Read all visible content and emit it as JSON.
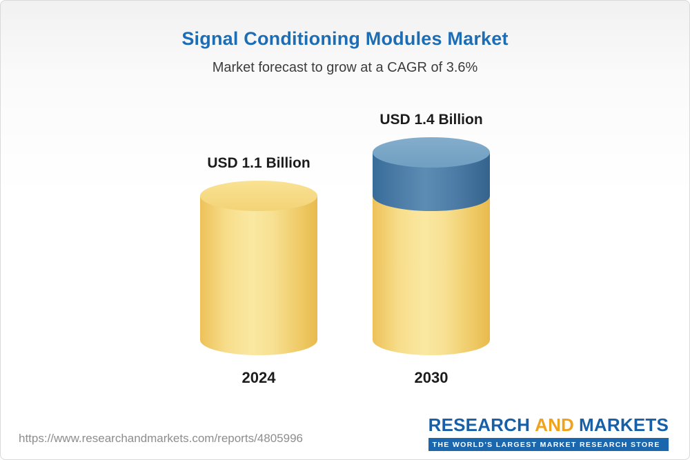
{
  "chart_data": {
    "type": "bar",
    "bar_style": "3d-cylinder",
    "title": "Signal Conditioning Modules Market",
    "subtitle": "Market forecast to grow at a CAGR of 3.6%",
    "cagr_percent": 3.6,
    "unit": "USD Billion",
    "categories": [
      "2024",
      "2030"
    ],
    "values": [
      1.1,
      1.4
    ],
    "value_labels": [
      "USD 1.1 Billion",
      "USD 1.4 Billion"
    ],
    "ylim": [
      0,
      1.6
    ],
    "grid": false,
    "legend": "none",
    "colors": {
      "base_segment": "#F6D77B",
      "growth_segment": "#4779A5",
      "title": "#1D6DB4"
    },
    "notes": "2030 cylinder shows growth above the 2024 baseline as a blue top segment"
  },
  "footer": {
    "source_url": "https://www.researchandmarkets.com/reports/4805996",
    "logo": {
      "research": "RESEARCH",
      "and": "AND",
      "markets": "MARKETS",
      "tagline": "THE WORLD'S LARGEST MARKET RESEARCH STORE"
    }
  }
}
